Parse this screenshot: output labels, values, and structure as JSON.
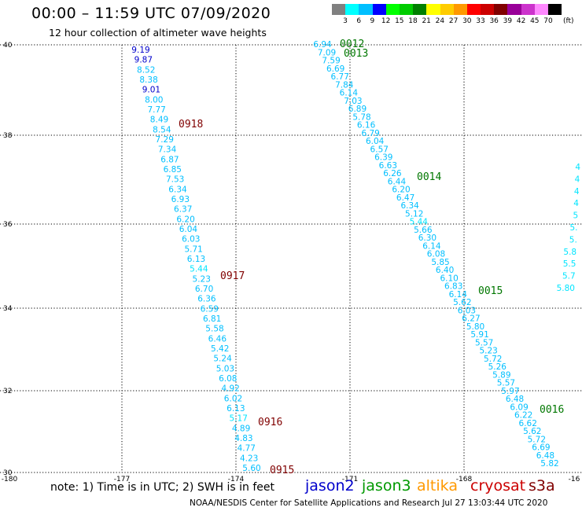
{
  "title": "00:00 – 11:59 UTC 07/09/2020",
  "subtitle": "12 hour collection of altimeter wave heights",
  "colorbar": {
    "colors": [
      "#808080",
      "#00ffff",
      "#00bfff",
      "#0000ff",
      "#00ff00",
      "#00cc00",
      "#008000",
      "#ffff00",
      "#ffcc00",
      "#ff9900",
      "#ff0000",
      "#cc0000",
      "#800000",
      "#990099",
      "#cc33cc",
      "#ff88ff",
      "#000000"
    ],
    "labels": [
      "3",
      "6",
      "9",
      "12",
      "15",
      "18",
      "21",
      "24",
      "27",
      "30",
      "33",
      "36",
      "39",
      "42",
      "45",
      "70"
    ],
    "unit": "(ft)"
  },
  "axes": {
    "x_ticks": [
      "-180",
      "-177",
      "-174",
      "-171",
      "-168",
      "-16"
    ],
    "y_ticks": [
      "40",
      "38",
      "36",
      "34",
      "32",
      "30"
    ]
  },
  "tracks": [
    {
      "pass_labels": [
        {
          "text": "0918",
          "color": "#800000"
        },
        {
          "text": "0917",
          "color": "#800000"
        },
        {
          "text": "0916",
          "color": "#800000"
        },
        {
          "text": "0915",
          "color": "#800000"
        }
      ],
      "readings": [
        {
          "v": "9.19",
          "c": "#0000cc"
        },
        {
          "v": "9.87",
          "c": "#0000cc"
        },
        {
          "v": "8.52",
          "c": "#00bfff"
        },
        {
          "v": "8.38",
          "c": "#00bfff"
        },
        {
          "v": "9.01",
          "c": "#0000cc"
        },
        {
          "v": "8.00",
          "c": "#00bfff"
        },
        {
          "v": "7.77",
          "c": "#00bfff"
        },
        {
          "v": "8.49",
          "c": "#00bfff"
        },
        {
          "v": "8.54",
          "c": "#00bfff"
        },
        {
          "v": "7.29",
          "c": "#00bfff"
        },
        {
          "v": "7.34",
          "c": "#00bfff"
        },
        {
          "v": "6.87",
          "c": "#00bfff"
        },
        {
          "v": "6.85",
          "c": "#00bfff"
        },
        {
          "v": "7.53",
          "c": "#00bfff"
        },
        {
          "v": "6.34",
          "c": "#00bfff"
        },
        {
          "v": "6.93",
          "c": "#00bfff"
        },
        {
          "v": "6.37",
          "c": "#00bfff"
        },
        {
          "v": "6.20",
          "c": "#00bfff"
        },
        {
          "v": "6.04",
          "c": "#00bfff"
        },
        {
          "v": "6.03",
          "c": "#00bfff"
        },
        {
          "v": "5.71",
          "c": "#00bfff"
        },
        {
          "v": "6.13",
          "c": "#00bfff"
        },
        {
          "v": "5.44",
          "c": "#00e5ff"
        },
        {
          "v": "5.23",
          "c": "#00bfff"
        },
        {
          "v": "6.70",
          "c": "#00bfff"
        },
        {
          "v": "6.36",
          "c": "#00bfff"
        },
        {
          "v": "6.59",
          "c": "#00bfff"
        },
        {
          "v": "6.81",
          "c": "#00bfff"
        },
        {
          "v": "5.58",
          "c": "#00bfff"
        },
        {
          "v": "6.46",
          "c": "#00bfff"
        },
        {
          "v": "5.42",
          "c": "#00bfff"
        },
        {
          "v": "5.24",
          "c": "#00bfff"
        },
        {
          "v": "5.03",
          "c": "#00bfff"
        },
        {
          "v": "6.08",
          "c": "#00bfff"
        },
        {
          "v": "4.92",
          "c": "#00bfff"
        },
        {
          "v": "6.02",
          "c": "#00bfff"
        },
        {
          "v": "6.13",
          "c": "#00bfff"
        },
        {
          "v": "5.17",
          "c": "#00e5ff"
        },
        {
          "v": "4.89",
          "c": "#00bfff"
        },
        {
          "v": "4.83",
          "c": "#00bfff"
        },
        {
          "v": "4.77",
          "c": "#00bfff"
        },
        {
          "v": "4.23",
          "c": "#00bfff"
        },
        {
          "v": "5.60",
          "c": "#00bfff"
        }
      ]
    },
    {
      "pass_labels": [
        {
          "text": "0012",
          "color": "#007700"
        },
        {
          "text": "0013",
          "color": "#007700"
        },
        {
          "text": "0014",
          "color": "#007700"
        },
        {
          "text": "0015",
          "color": "#007700"
        },
        {
          "text": "0016",
          "color": "#007700"
        }
      ],
      "readings": [
        {
          "v": "6.94",
          "c": "#00bfff"
        },
        {
          "v": "7.09",
          "c": "#00bfff"
        },
        {
          "v": "7.59",
          "c": "#00bfff"
        },
        {
          "v": "6.69",
          "c": "#00bfff"
        },
        {
          "v": "6.77",
          "c": "#00bfff"
        },
        {
          "v": "7.84",
          "c": "#00bfff"
        },
        {
          "v": "6.14",
          "c": "#00bfff"
        },
        {
          "v": "7.03",
          "c": "#00bfff"
        },
        {
          "v": "6.89",
          "c": "#00bfff"
        },
        {
          "v": "5.78",
          "c": "#00bfff"
        },
        {
          "v": "6.16",
          "c": "#00bfff"
        },
        {
          "v": "6.79",
          "c": "#00bfff"
        },
        {
          "v": "6.04",
          "c": "#00bfff"
        },
        {
          "v": "6.57",
          "c": "#00bfff"
        },
        {
          "v": "6.39",
          "c": "#00bfff"
        },
        {
          "v": "6.63",
          "c": "#00bfff"
        },
        {
          "v": "6.26",
          "c": "#00bfff"
        },
        {
          "v": "6.44",
          "c": "#00bfff"
        },
        {
          "v": "6.20",
          "c": "#00bfff"
        },
        {
          "v": "6.47",
          "c": "#00bfff"
        },
        {
          "v": "6.34",
          "c": "#00bfff"
        },
        {
          "v": "5.12",
          "c": "#00bfff"
        },
        {
          "v": "5.44",
          "c": "#00e5ff"
        },
        {
          "v": "5.66",
          "c": "#00bfff"
        },
        {
          "v": "6.30",
          "c": "#00bfff"
        },
        {
          "v": "6.14",
          "c": "#00bfff"
        },
        {
          "v": "6.08",
          "c": "#00bfff"
        },
        {
          "v": "5.85",
          "c": "#00bfff"
        },
        {
          "v": "6.40",
          "c": "#00bfff"
        },
        {
          "v": "6.10",
          "c": "#00bfff"
        },
        {
          "v": "6.83",
          "c": "#00bfff"
        },
        {
          "v": "6.14",
          "c": "#00bfff"
        },
        {
          "v": "5.62",
          "c": "#00bfff"
        },
        {
          "v": "6.03",
          "c": "#00bfff"
        },
        {
          "v": "6.27",
          "c": "#00bfff"
        },
        {
          "v": "5.80",
          "c": "#00bfff"
        },
        {
          "v": "5.91",
          "c": "#00bfff"
        },
        {
          "v": "5.57",
          "c": "#00bfff"
        },
        {
          "v": "5.23",
          "c": "#00bfff"
        },
        {
          "v": "5.72",
          "c": "#00bfff"
        },
        {
          "v": "5.26",
          "c": "#00bfff"
        },
        {
          "v": "5.89",
          "c": "#00bfff"
        },
        {
          "v": "5.57",
          "c": "#00bfff"
        },
        {
          "v": "5.97",
          "c": "#00bfff"
        },
        {
          "v": "6.48",
          "c": "#00bfff"
        },
        {
          "v": "6.09",
          "c": "#00bfff"
        },
        {
          "v": "6.22",
          "c": "#00bfff"
        },
        {
          "v": "6.62",
          "c": "#00bfff"
        },
        {
          "v": "5.62",
          "c": "#00bfff"
        },
        {
          "v": "5.72",
          "c": "#00bfff"
        },
        {
          "v": "6.69",
          "c": "#00bfff"
        },
        {
          "v": "6.48",
          "c": "#00bfff"
        },
        {
          "v": "5.82",
          "c": "#00bfff"
        }
      ]
    },
    {
      "readings": [
        {
          "v": "4",
          "c": "#00e5ff"
        },
        {
          "v": "4",
          "c": "#00e5ff"
        },
        {
          "v": "4",
          "c": "#00e5ff"
        },
        {
          "v": "4",
          "c": "#00e5ff"
        },
        {
          "v": "5",
          "c": "#00e5ff"
        },
        {
          "v": "5.",
          "c": "#00e5ff"
        },
        {
          "v": "5.",
          "c": "#00e5ff"
        },
        {
          "v": "5.8",
          "c": "#00e5ff"
        },
        {
          "v": "5.5",
          "c": "#00e5ff"
        },
        {
          "v": "5.7",
          "c": "#00e5ff"
        },
        {
          "v": "5.80",
          "c": "#00e5ff"
        }
      ]
    }
  ],
  "note": "note: 1) Time is in UTC; 2) SWH is in feet",
  "legend": [
    {
      "label": "jason2",
      "color": "#0000cc"
    },
    {
      "label": "jason3",
      "color": "#009900"
    },
    {
      "label": "altika",
      "color": "#ff9900"
    },
    {
      "label": "cryosat",
      "color": "#cc0000"
    },
    {
      "label": "s3a",
      "color": "#800000"
    }
  ],
  "credit": "NOAA/NESDIS Center for Satellite Applications and Research    Jul 27 13:03:44 UTC 2020"
}
